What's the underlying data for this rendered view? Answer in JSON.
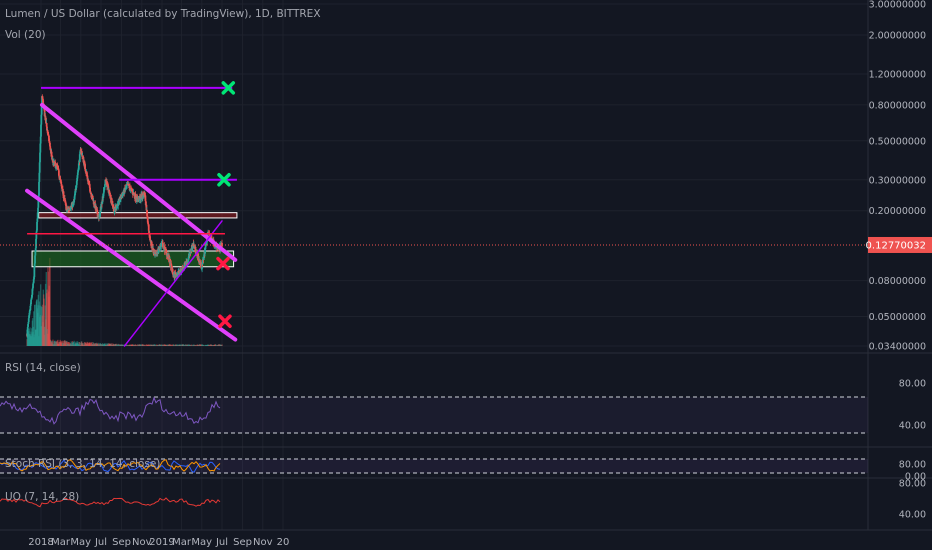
{
  "header": {
    "title": "Lumen / US Dollar (calculated by TradingView), 1D, BITTREX",
    "volume_label": "Vol (20)"
  },
  "colors": {
    "background": "#131722",
    "grid": "#1e222d",
    "candle_up": "#26a69a",
    "candle_down": "#ef5350",
    "channel": "#e040fb",
    "level": "#9c27b0",
    "support_zone": "#1b5e20",
    "resistance_zone": "#b71c1c",
    "target_mark": "#00e676",
    "stop_mark": "#ff1744",
    "rsi": "#7e57c2",
    "uo": "#e53935"
  },
  "chart_data": [
    {
      "type": "candlestick",
      "title": "Lumen / US Dollar (calculated by TradingView), 1D, BITTREX",
      "y_scale": "log",
      "ylim": [
        0.034,
        3.0
      ],
      "x_ticks": [
        "2018",
        "Mar",
        "May",
        "Jul",
        "Sep",
        "Nov",
        "2019",
        "Mar",
        "May",
        "Jul",
        "Sep",
        "Nov",
        "20"
      ],
      "y_ticks": [
        "3.00000000",
        "2.00000000",
        "1.20000000",
        "0.80000000",
        "0.50000000",
        "0.30000000",
        "0.20000000",
        "0.08000000",
        "0.05000000",
        "0.03400000"
      ],
      "last_price": "0.12770032",
      "price_path": [
        [
          "2017-11-20",
          0.04
        ],
        [
          "2017-12-10",
          0.08
        ],
        [
          "2017-12-25",
          0.25
        ],
        [
          "2018-01-04",
          0.9
        ],
        [
          "2018-01-15",
          0.65
        ],
        [
          "2018-02-05",
          0.38
        ],
        [
          "2018-02-20",
          0.35
        ],
        [
          "2018-03-20",
          0.2
        ],
        [
          "2018-04-10",
          0.22
        ],
        [
          "2018-05-01",
          0.45
        ],
        [
          "2018-06-01",
          0.25
        ],
        [
          "2018-06-25",
          0.18
        ],
        [
          "2018-07-15",
          0.3
        ],
        [
          "2018-08-10",
          0.2
        ],
        [
          "2018-09-05",
          0.25
        ],
        [
          "2018-09-20",
          0.28
        ],
        [
          "2018-10-20",
          0.23
        ],
        [
          "2018-11-10",
          0.25
        ],
        [
          "2018-11-25",
          0.14
        ],
        [
          "2018-12-10",
          0.11
        ],
        [
          "2019-01-01",
          0.13
        ],
        [
          "2019-01-20",
          0.11
        ],
        [
          "2019-02-05",
          0.085
        ],
        [
          "2019-02-25",
          0.09
        ],
        [
          "2019-03-20",
          0.105
        ],
        [
          "2019-04-05",
          0.13
        ],
        [
          "2019-05-01",
          0.095
        ],
        [
          "2019-05-20",
          0.15
        ],
        [
          "2019-06-20",
          0.12
        ],
        [
          "2019-07-01",
          0.1277
        ]
      ],
      "drawings": {
        "channel_upper": [
          [
            "2018-01-04",
            0.8
          ],
          [
            "2019-08-10",
            0.105
          ]
        ],
        "channel_lower": [
          [
            "2017-11-20",
            0.26
          ],
          [
            "2019-08-10",
            0.037
          ]
        ],
        "uptrend": [
          [
            "2018-09-10",
            0.034
          ],
          [
            "2019-07-01",
            0.175
          ]
        ],
        "resistance_line_high": {
          "price": 1.0,
          "from": "2018-01-01",
          "to": "2019-08-01"
        },
        "resistance_line_mid": {
          "price": 0.3,
          "from": "2018-08-25",
          "to": "2019-08-15"
        },
        "red_zone": {
          "price_top": 0.195,
          "price_bottom": 0.182,
          "from": "2017-12-25",
          "to": "2019-08-15"
        },
        "red_line": {
          "price": 0.148,
          "from": "2017-11-20",
          "to": "2019-07-10"
        },
        "green_zone": {
          "price_top": 0.118,
          "price_bottom": 0.096,
          "from": "2017-12-05",
          "to": "2019-08-05"
        },
        "targets": [
          [
            "2019-07-20",
            1.0
          ],
          [
            "2019-07-07",
            0.3
          ]
        ],
        "stops": [
          [
            "2019-07-04",
            0.1
          ],
          [
            "2019-07-10",
            0.047
          ]
        ]
      }
    },
    {
      "type": "line",
      "title": "RSI (14, close)",
      "y_ticks": [
        "80.00",
        "40.00"
      ],
      "bands": [
        70,
        30
      ],
      "series": [
        {
          "name": "RSI (14, close)"
        }
      ]
    },
    {
      "type": "line",
      "title": "Stoch RSI (3, 3, 14, 14, close)",
      "y_ticks": [
        "80.00",
        "0.00"
      ],
      "bands": [
        80,
        20
      ]
    },
    {
      "type": "line",
      "title": "UO (7, 14, 28)",
      "y_ticks": [
        "80.00",
        "40.00"
      ]
    }
  ]
}
